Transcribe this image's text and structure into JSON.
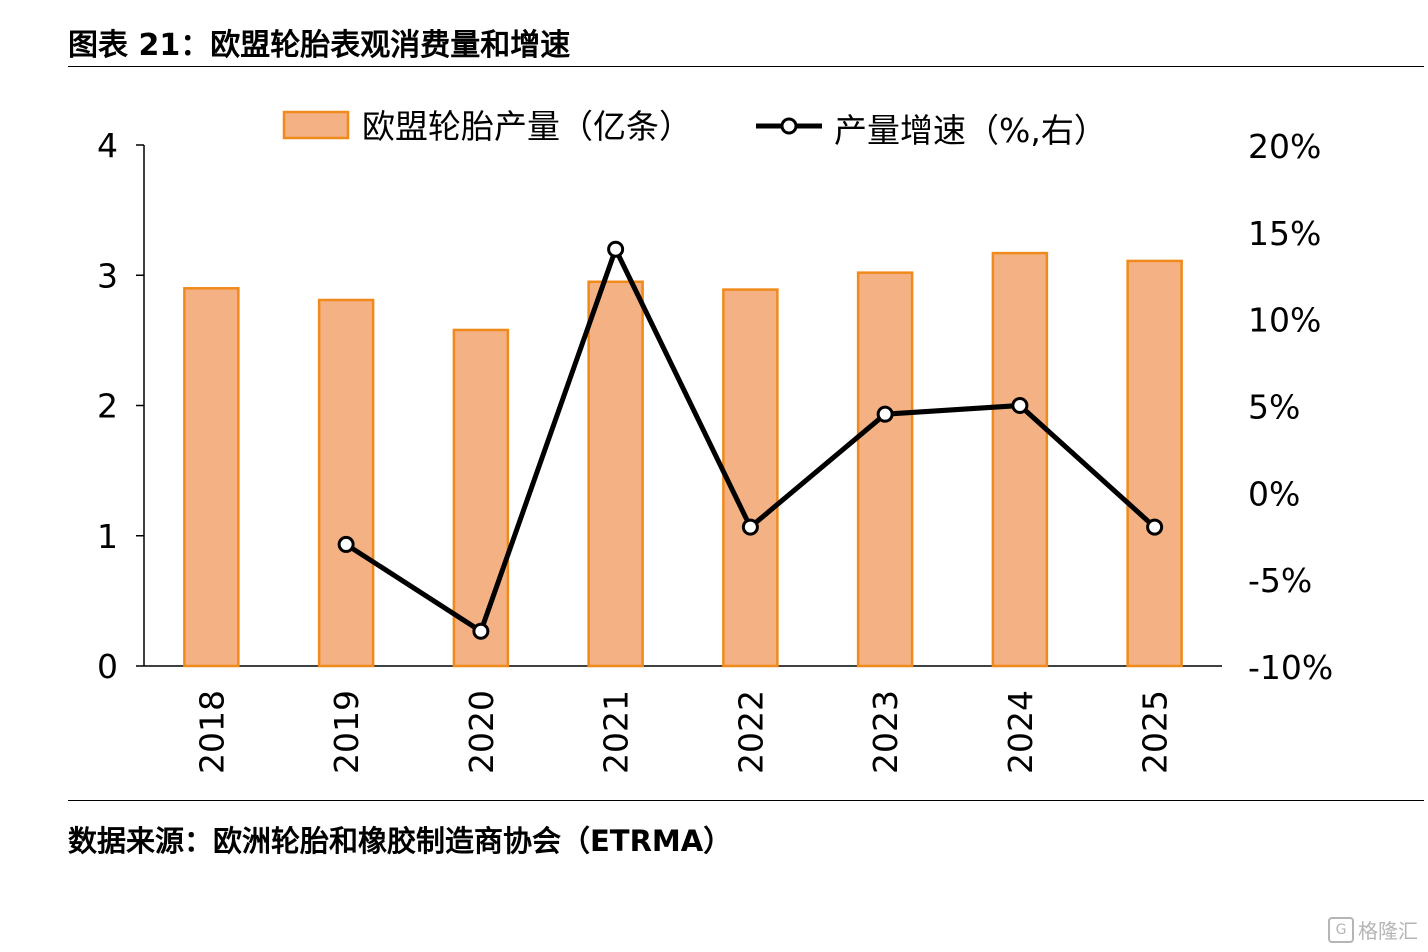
{
  "header": {
    "title": "图表 21：欧盟轮胎表观消费量和增速"
  },
  "footer": {
    "source": "数据来源：欧洲轮胎和橡胶制造商协会（ETRMA）"
  },
  "watermark": {
    "text": "格隆汇",
    "logo_glyph": "G"
  },
  "colors": {
    "bar_fill": "#F4B183",
    "bar_stroke": "#F08A1C",
    "line": "#000000",
    "axis": "#000000"
  },
  "chart_data": {
    "type": "bar",
    "categories": [
      "2018",
      "2019",
      "2020",
      "2021",
      "2022",
      "2023",
      "2024",
      "2025"
    ],
    "legend_position": "top",
    "series": [
      {
        "name": "欧盟轮胎产量（亿条）",
        "type": "bar",
        "axis": "left",
        "values": [
          2.9,
          2.81,
          2.58,
          2.95,
          2.89,
          3.02,
          3.17,
          3.11
        ]
      },
      {
        "name": "产量增速（%,右）",
        "type": "line",
        "axis": "right",
        "marker": "circle",
        "values": [
          null,
          -3.0,
          -8.0,
          14.0,
          -2.0,
          4.5,
          5.0,
          -2.0
        ]
      }
    ],
    "y_left": {
      "min": 0,
      "max": 4,
      "ticks": [
        "0",
        "1",
        "2",
        "3",
        "4"
      ]
    },
    "y_right": {
      "min": -10,
      "max": 20,
      "ticks": [
        "-10%",
        "-5%",
        "0%",
        "5%",
        "10%",
        "15%",
        "20%"
      ]
    },
    "grid": false
  }
}
